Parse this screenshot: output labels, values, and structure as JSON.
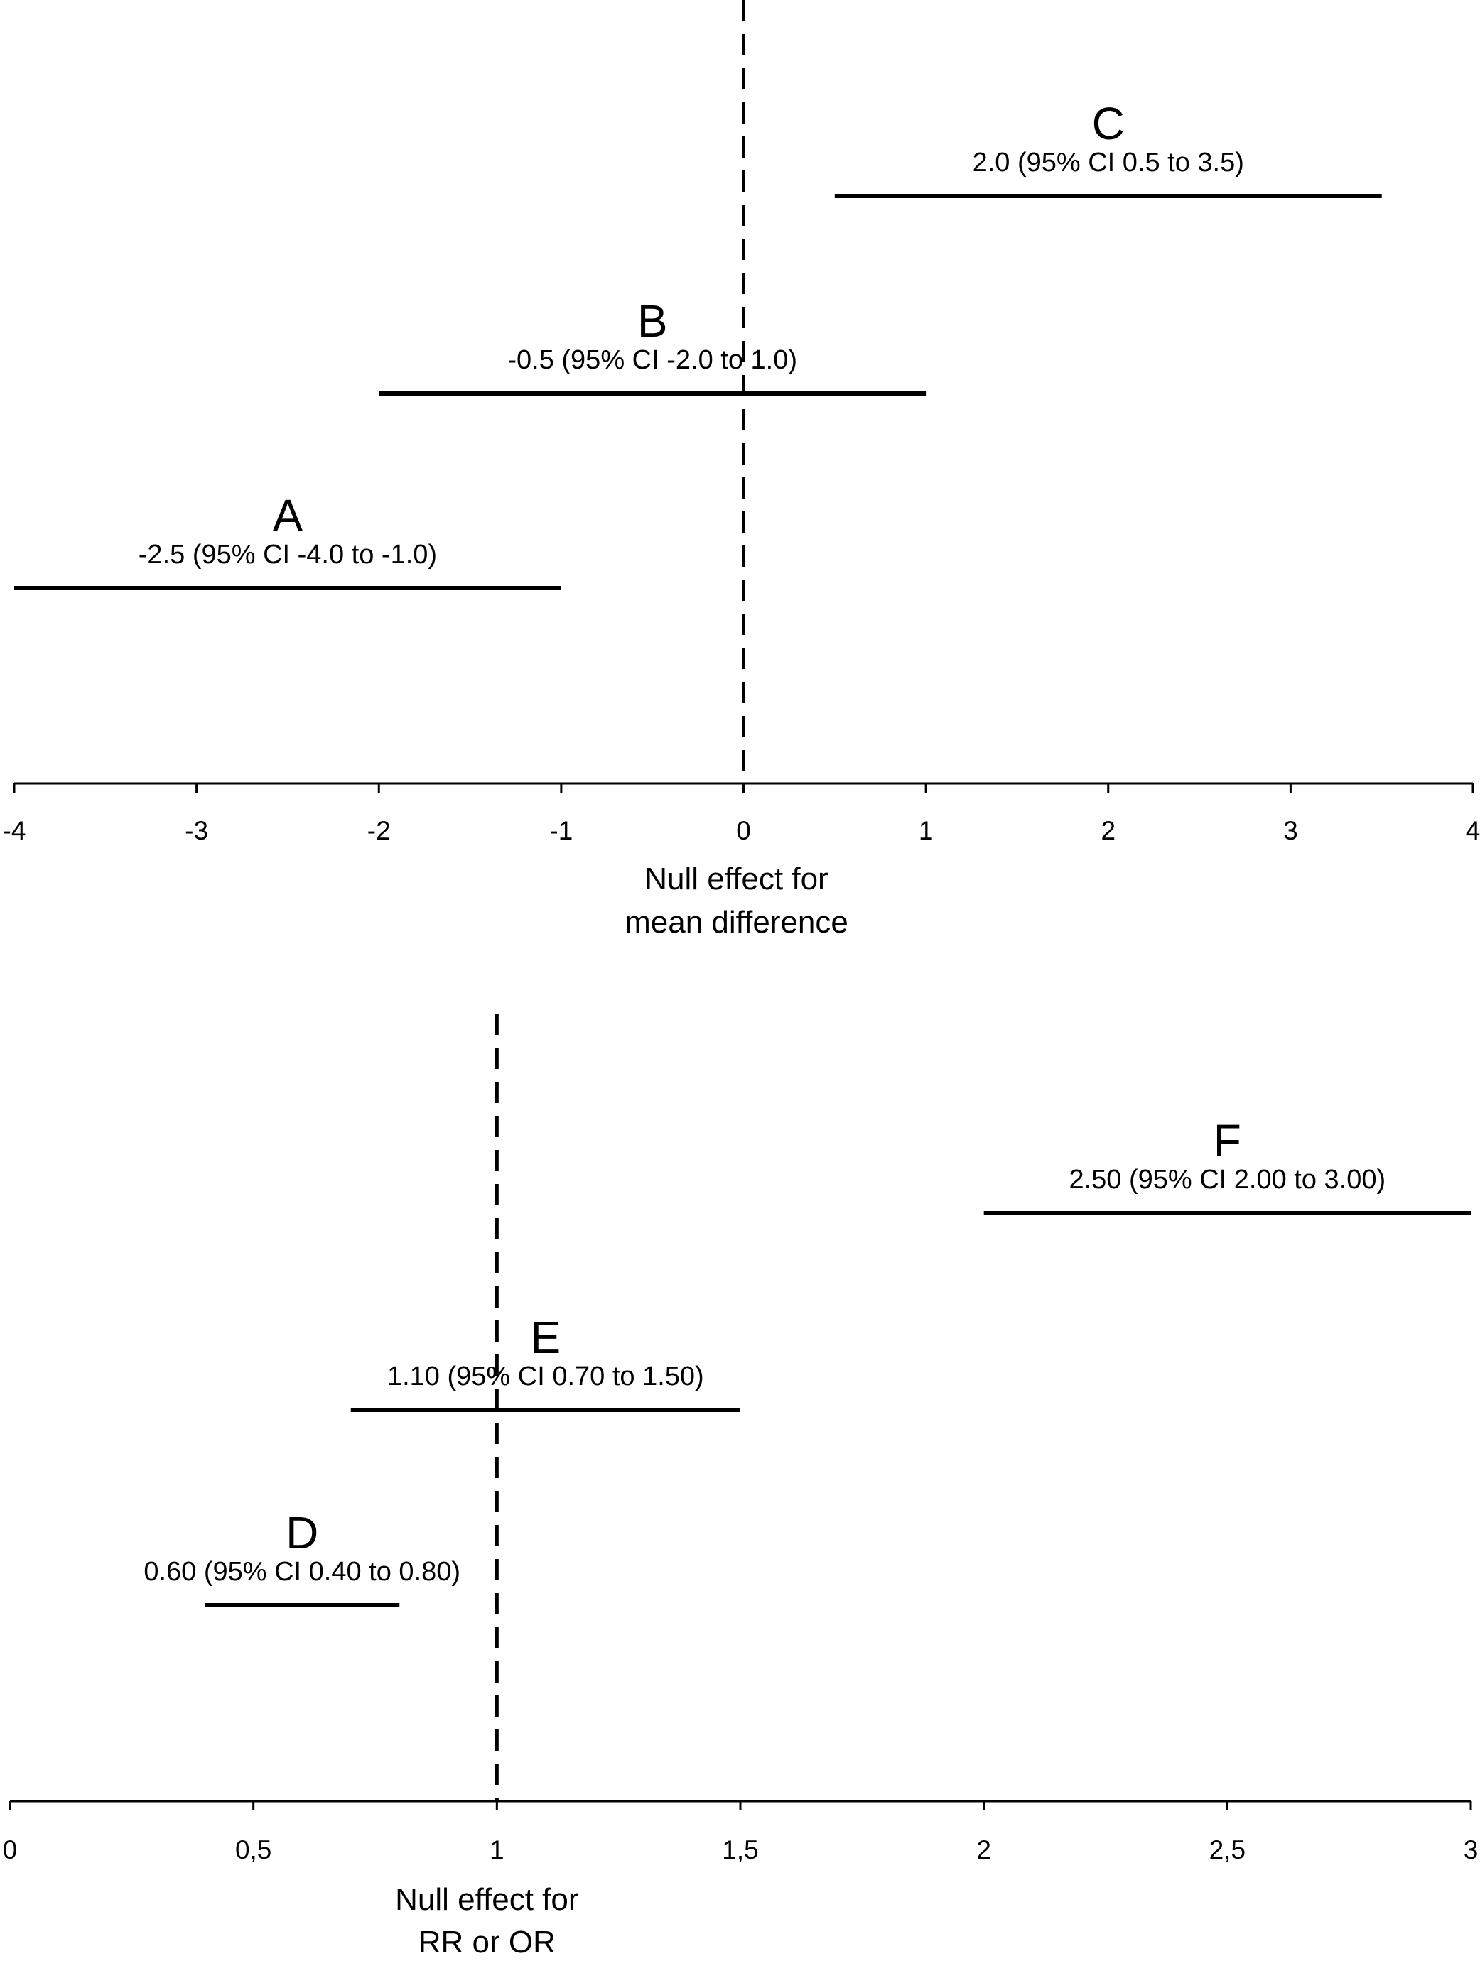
{
  "chart_data": [
    {
      "type": "forest",
      "xlim": [
        -4,
        4
      ],
      "x_ticks": [
        -4,
        -3,
        -2,
        -1,
        0,
        1,
        2,
        3,
        4
      ],
      "x_tick_labels": [
        "-4",
        "-3",
        "-2",
        "-1",
        "0",
        "1",
        "2",
        "3",
        "4"
      ],
      "reference_line": {
        "x": 0,
        "style": "dashed",
        "label_lines": [
          "Null effect for",
          "mean difference"
        ]
      },
      "intervals": [
        {
          "letter": "A",
          "estimate": -2.5,
          "lower": -4.0,
          "upper": -1.0,
          "text": "-2.5 (95% CI -4.0 to -1.0)"
        },
        {
          "letter": "B",
          "estimate": -0.5,
          "lower": -2.0,
          "upper": 1.0,
          "text": "-0.5 (95% CI -2.0 to 1.0)"
        },
        {
          "letter": "C",
          "estimate": 2.0,
          "lower": 0.5,
          "upper": 3.5,
          "text": "2.0 (95% CI 0.5 to 3.5)"
        }
      ]
    },
    {
      "type": "forest",
      "xlim": [
        0,
        3
      ],
      "x_ticks": [
        0,
        0.5,
        1,
        1.5,
        2,
        2.5,
        3
      ],
      "x_tick_labels": [
        "0",
        "0,5",
        "1",
        "1,5",
        "2",
        "2,5",
        "3"
      ],
      "reference_line": {
        "x": 1,
        "style": "dashed",
        "label_lines": [
          "Null effect for",
          "RR or OR"
        ]
      },
      "intervals": [
        {
          "letter": "D",
          "estimate": 0.6,
          "lower": 0.4,
          "upper": 0.8,
          "text": "0.60 (95% CI 0.40 to 0.80)"
        },
        {
          "letter": "E",
          "estimate": 1.1,
          "lower": 0.7,
          "upper": 1.5,
          "text": "1.10 (95% CI 0.70 to 1.50)"
        },
        {
          "letter": "F",
          "estimate": 2.5,
          "lower": 2.0,
          "upper": 3.0,
          "text": "2.50 (95% CI 2.00 to 3.00)"
        }
      ]
    }
  ]
}
